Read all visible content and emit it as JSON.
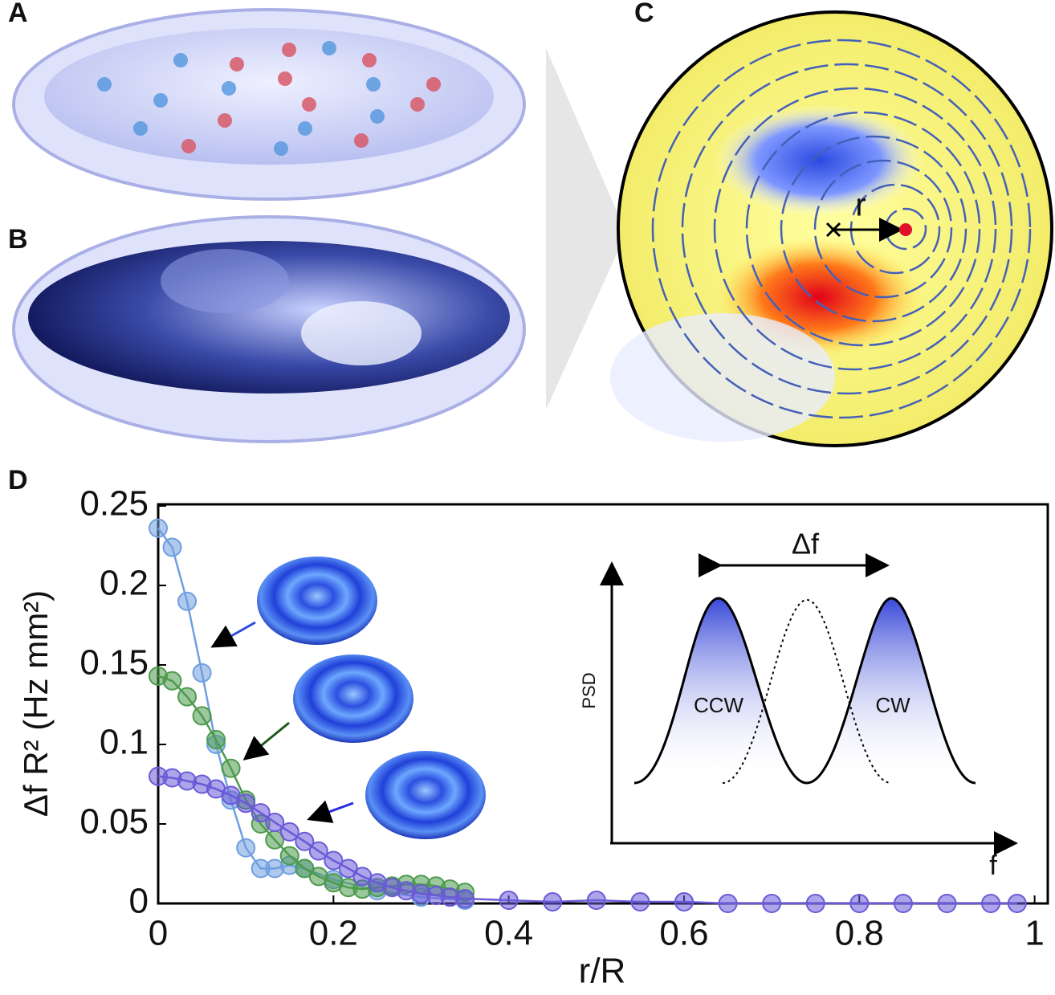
{
  "chart_data": {
    "type": "line",
    "panel_labels": [
      "A",
      "B",
      "C",
      "D"
    ],
    "radius_label": "r",
    "xlabel": "r/R",
    "ylabel": "Δf R² (Hz mm²)",
    "xlim": [
      0,
      1.015
    ],
    "ylim": [
      0,
      0.251
    ],
    "xticks": [
      0,
      0.2,
      0.4,
      0.6,
      0.8,
      1
    ],
    "yticks": [
      0,
      0.05,
      0.1,
      0.15,
      0.2,
      0.25
    ],
    "inset": {
      "delta_label": "Δf",
      "ylabel": "PSD",
      "xlabel": "f",
      "left_peak": "CCW",
      "right_peak": "CW"
    },
    "series": [
      {
        "color": "#6f9fe0",
        "x": [
          0,
          0.016,
          0.033,
          0.05,
          0.066,
          0.083,
          0.1,
          0.117,
          0.133,
          0.15,
          0.167,
          0.2,
          0.25,
          0.3,
          0.35
        ],
        "values": [
          0.236,
          0.224,
          0.19,
          0.145,
          0.1,
          0.065,
          0.035,
          0.022,
          0.022,
          0.024,
          0.022,
          0.015,
          0.008,
          0.004,
          0.002
        ]
      },
      {
        "color": "#4d9a4d",
        "x": [
          0,
          0.016,
          0.033,
          0.05,
          0.066,
          0.083,
          0.1,
          0.117,
          0.133,
          0.15,
          0.167,
          0.183,
          0.2,
          0.217,
          0.233,
          0.25,
          0.267,
          0.283,
          0.3,
          0.317,
          0.333,
          0.35
        ],
        "values": [
          0.143,
          0.14,
          0.13,
          0.118,
          0.103,
          0.085,
          0.065,
          0.05,
          0.04,
          0.03,
          0.022,
          0.017,
          0.013,
          0.01,
          0.009,
          0.01,
          0.011,
          0.012,
          0.012,
          0.011,
          0.009,
          0.007
        ]
      },
      {
        "color": "#6a5ad8",
        "x": [
          0,
          0.016,
          0.033,
          0.05,
          0.066,
          0.083,
          0.1,
          0.117,
          0.133,
          0.15,
          0.167,
          0.183,
          0.2,
          0.217,
          0.233,
          0.25,
          0.267,
          0.283,
          0.3,
          0.317,
          0.333,
          0.35,
          0.4,
          0.45,
          0.5,
          0.55,
          0.6,
          0.65,
          0.7,
          0.75,
          0.8,
          0.85,
          0.9,
          0.95,
          0.98
        ],
        "values": [
          0.08,
          0.079,
          0.077,
          0.075,
          0.072,
          0.068,
          0.063,
          0.057,
          0.051,
          0.045,
          0.039,
          0.033,
          0.027,
          0.022,
          0.017,
          0.013,
          0.01,
          0.008,
          0.006,
          0.005,
          0.004,
          0.003,
          0.002,
          0.001,
          0.002,
          0.001,
          0.001,
          0,
          0,
          0,
          0,
          0,
          0,
          0,
          0
        ]
      }
    ]
  }
}
